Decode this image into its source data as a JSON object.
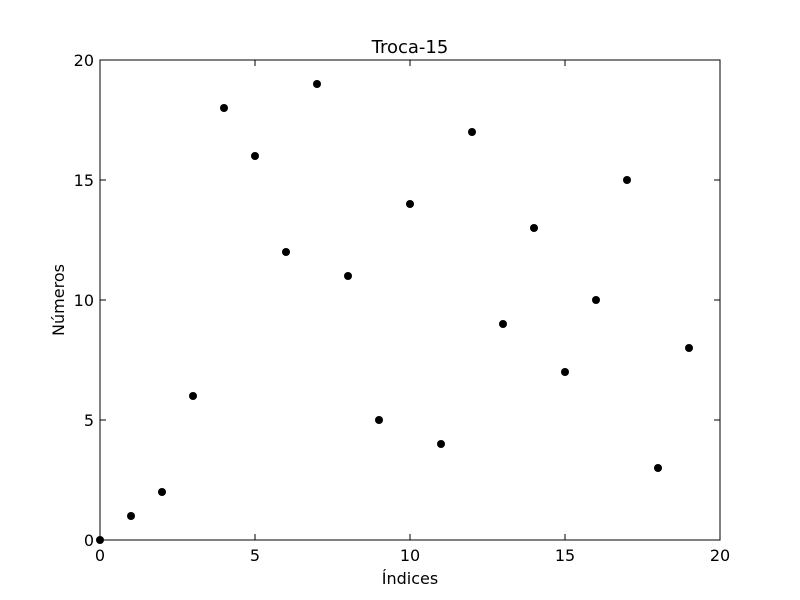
{
  "chart_data": {
    "type": "scatter",
    "title": "Troca-15",
    "xlabel": "Índices",
    "ylabel": "Números",
    "xlim": [
      0,
      20
    ],
    "ylim": [
      0,
      20
    ],
    "xticks": [
      0,
      5,
      10,
      15,
      20
    ],
    "yticks": [
      0,
      5,
      10,
      15,
      20
    ],
    "x_tick_labels": [
      "0",
      "5",
      "10",
      "15",
      "20"
    ],
    "y_tick_labels": [
      "0",
      "5",
      "10",
      "15",
      "20"
    ],
    "grid": false,
    "marker_color": "#000000",
    "series": [
      {
        "name": "Números",
        "x": [
          0,
          1,
          2,
          3,
          4,
          5,
          6,
          7,
          8,
          9,
          10,
          11,
          12,
          13,
          14,
          15,
          16,
          17,
          18,
          19
        ],
        "y": [
          0,
          1,
          2,
          6,
          18,
          16,
          12,
          19,
          11,
          5,
          14,
          4,
          17,
          9,
          13,
          7,
          10,
          15,
          3,
          8
        ]
      }
    ]
  }
}
